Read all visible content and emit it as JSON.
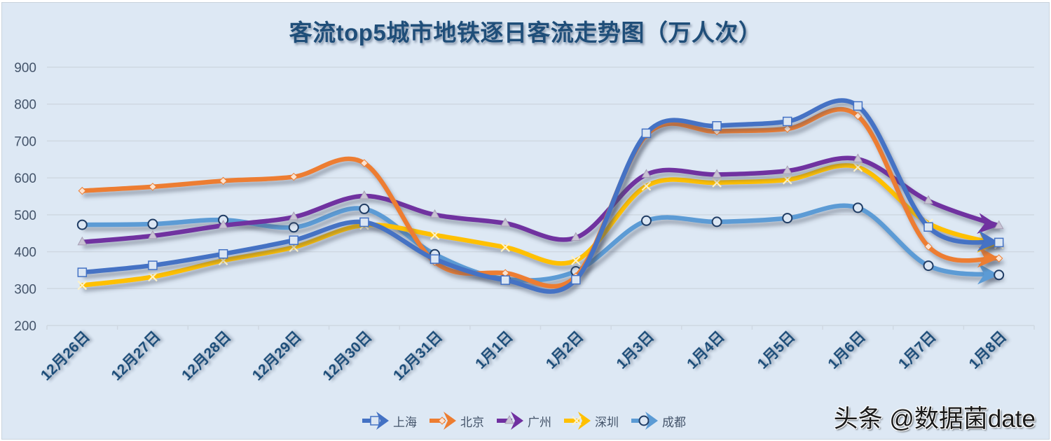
{
  "title": "客流top5城市地铁逐日客流走势图（万人次）",
  "watermark": "头条 @数据菌date",
  "colors": {
    "background": "#dde8f4",
    "gridline": "#cfd8e2",
    "上海": "#4472C4",
    "北京": "#ED7D31",
    "广州": "#7030A0",
    "深圳": "#FFC000",
    "成都": "#5B9BD5"
  },
  "legend": [
    {
      "name": "上海",
      "marker": "square",
      "color": "#4472C4"
    },
    {
      "name": "北京",
      "marker": "diamond",
      "color": "#ED7D31"
    },
    {
      "name": "广州",
      "marker": "triangle",
      "color": "#7030A0"
    },
    {
      "name": "深圳",
      "marker": "x",
      "color": "#FFC000"
    },
    {
      "name": "成都",
      "marker": "circle",
      "color": "#5B9BD5"
    }
  ],
  "chart_data": {
    "type": "line",
    "title": "客流top5城市地铁逐日客流走势图（万人次）",
    "xlabel": "",
    "ylabel": "",
    "ylim": [
      200,
      900
    ],
    "yticks": [
      200,
      300,
      400,
      500,
      600,
      700,
      800,
      900
    ],
    "grid": true,
    "smooth": true,
    "legend_position": "bottom",
    "categories": [
      "12月26日",
      "12月27日",
      "12月28日",
      "12月29日",
      "12月30日",
      "12月31日",
      "1月1日",
      "1月2日",
      "1月3日",
      "1月4日",
      "1月5日",
      "1月6日",
      "1月7日",
      "1月8日"
    ],
    "series": [
      {
        "name": "上海",
        "marker": "square",
        "values": [
          344,
          363,
          394,
          431,
          480,
          380,
          323,
          324,
          721,
          741,
          753,
          795,
          467,
          425
        ]
      },
      {
        "name": "北京",
        "marker": "diamond",
        "values": [
          565,
          576,
          592,
          603,
          640,
          372,
          342,
          333,
          716,
          726,
          733,
          768,
          414,
          382
        ]
      },
      {
        "name": "广州",
        "marker": "triangle",
        "values": [
          426,
          443,
          471,
          494,
          551,
          500,
          477,
          438,
          609,
          609,
          619,
          651,
          538,
          470
        ]
      },
      {
        "name": "深圳",
        "marker": "x",
        "values": [
          309,
          332,
          376,
          412,
          472,
          445,
          412,
          376,
          578,
          587,
          595,
          629,
          477,
          420
        ]
      },
      {
        "name": "成都",
        "marker": "circle",
        "values": [
          473,
          475,
          486,
          466,
          516,
          393,
          326,
          347,
          484,
          481,
          491,
          519,
          362,
          337
        ]
      }
    ]
  }
}
